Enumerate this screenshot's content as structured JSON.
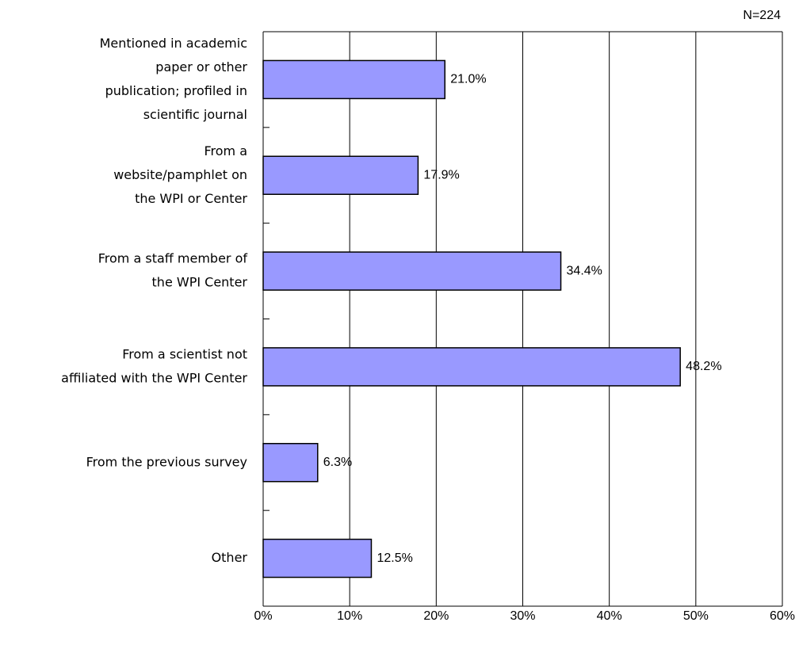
{
  "chart_data": {
    "type": "barh",
    "annotation": "N=224",
    "categories": [
      [
        "Mentioned in academic",
        "paper or other",
        "publication; profiled in",
        "scientific journal"
      ],
      [
        "From a",
        "website/pamphlet on",
        "the WPI or Center"
      ],
      [
        "From a staff member of",
        "the WPI Center"
      ],
      [
        "From a scientist not",
        "affiliated with the WPI Center"
      ],
      [
        "From the previous survey"
      ],
      [
        "Other"
      ]
    ],
    "values": [
      21.0,
      17.9,
      34.4,
      48.2,
      6.3,
      12.5
    ],
    "value_labels": [
      "21.0%",
      "17.9%",
      "34.4%",
      "48.2%",
      "6.3%",
      "12.5%"
    ],
    "color": "#9999ff",
    "xlim": [
      0,
      60
    ],
    "xticks": [
      {
        "value": 0,
        "label": "0%"
      },
      {
        "value": 10,
        "label": "10%"
      },
      {
        "value": 20,
        "label": "20%"
      },
      {
        "value": 30,
        "label": "30%"
      },
      {
        "value": 40,
        "label": "40%"
      },
      {
        "value": 50,
        "label": "50%"
      },
      {
        "value": 60,
        "label": "60%"
      }
    ],
    "grid": true
  }
}
